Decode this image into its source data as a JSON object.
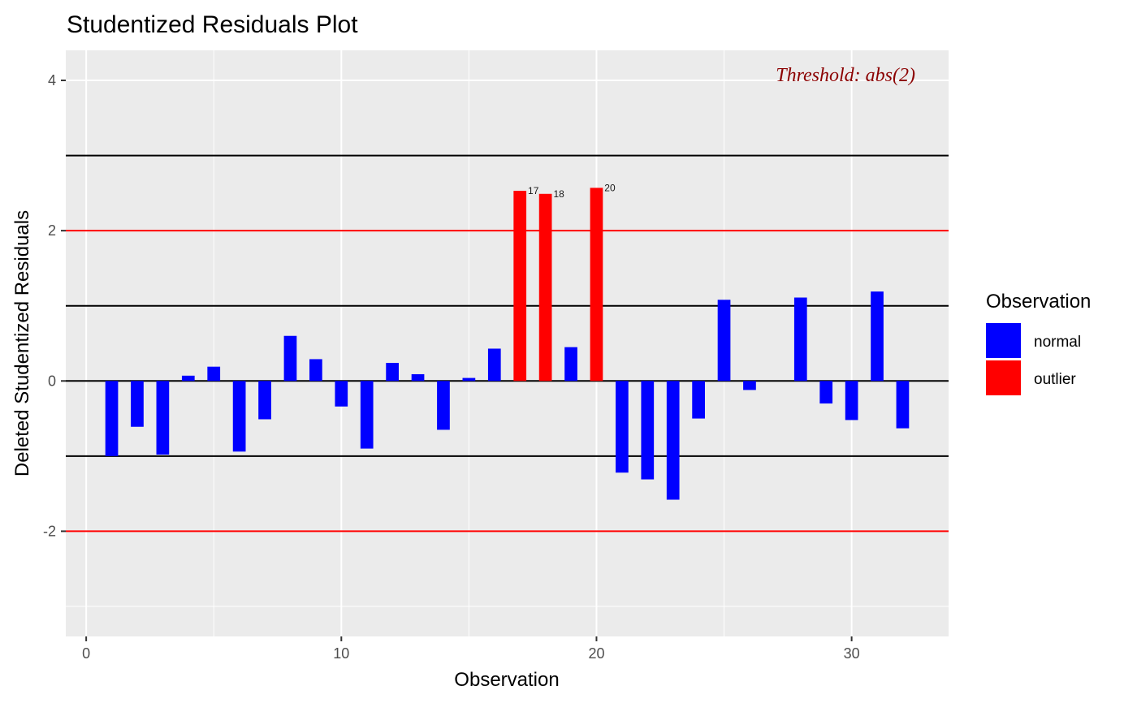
{
  "chart_data": {
    "type": "bar",
    "title": "Studentized Residuals Plot",
    "xlabel": "Observation",
    "ylabel": "Deleted Studentized Residuals",
    "xlim": [
      -0.8,
      33.8
    ],
    "ylim": [
      -3.4,
      4.4
    ],
    "x_ticks": [
      0,
      10,
      20,
      30
    ],
    "y_ticks": [
      -2,
      0,
      2,
      4
    ],
    "grid": true,
    "threshold_note": "Threshold: abs(2)",
    "colors": {
      "normal": "#0000ff",
      "outlier": "#ff0000",
      "threshold_line": "#ff0000",
      "reference_line": "#000000",
      "panel_background": "#ebebeb",
      "threshold_text": "#8b0000"
    },
    "reference_lines": [
      3,
      1,
      0,
      -1
    ],
    "threshold_lines": [
      2,
      -2
    ],
    "legend": {
      "title": "Observation",
      "position": "right",
      "items": [
        {
          "label": "normal",
          "color": "#0000ff"
        },
        {
          "label": "outlier",
          "color": "#ff0000"
        }
      ]
    },
    "bars": [
      {
        "x": 1,
        "y": -1.0,
        "group": "normal"
      },
      {
        "x": 2,
        "y": -0.61,
        "group": "normal"
      },
      {
        "x": 3,
        "y": -0.98,
        "group": "normal"
      },
      {
        "x": 4,
        "y": 0.07,
        "group": "normal"
      },
      {
        "x": 5,
        "y": 0.19,
        "group": "normal"
      },
      {
        "x": 6,
        "y": -0.94,
        "group": "normal"
      },
      {
        "x": 7,
        "y": -0.51,
        "group": "normal"
      },
      {
        "x": 8,
        "y": 0.6,
        "group": "normal"
      },
      {
        "x": 9,
        "y": 0.29,
        "group": "normal"
      },
      {
        "x": 10,
        "y": -0.34,
        "group": "normal"
      },
      {
        "x": 11,
        "y": -0.9,
        "group": "normal"
      },
      {
        "x": 12,
        "y": 0.24,
        "group": "normal"
      },
      {
        "x": 13,
        "y": 0.09,
        "group": "normal"
      },
      {
        "x": 14,
        "y": -0.65,
        "group": "normal"
      },
      {
        "x": 15,
        "y": 0.04,
        "group": "normal"
      },
      {
        "x": 16,
        "y": 0.43,
        "group": "normal"
      },
      {
        "x": 17,
        "y": 2.53,
        "group": "outlier",
        "label": "17"
      },
      {
        "x": 18,
        "y": 2.49,
        "group": "outlier",
        "label": "18"
      },
      {
        "x": 19,
        "y": 0.45,
        "group": "normal"
      },
      {
        "x": 20,
        "y": 2.57,
        "group": "outlier",
        "label": "20"
      },
      {
        "x": 21,
        "y": -1.22,
        "group": "normal"
      },
      {
        "x": 22,
        "y": -1.31,
        "group": "normal"
      },
      {
        "x": 23,
        "y": -1.58,
        "group": "normal"
      },
      {
        "x": 24,
        "y": -0.5,
        "group": "normal"
      },
      {
        "x": 25,
        "y": 1.08,
        "group": "normal"
      },
      {
        "x": 26,
        "y": -0.12,
        "group": "normal"
      },
      {
        "x": 27,
        "y": 0.0,
        "group": "normal"
      },
      {
        "x": 28,
        "y": 1.11,
        "group": "normal"
      },
      {
        "x": 29,
        "y": -0.3,
        "group": "normal"
      },
      {
        "x": 30,
        "y": -0.52,
        "group": "normal"
      },
      {
        "x": 31,
        "y": 1.19,
        "group": "normal"
      },
      {
        "x": 32,
        "y": -0.63,
        "group": "normal"
      }
    ]
  }
}
